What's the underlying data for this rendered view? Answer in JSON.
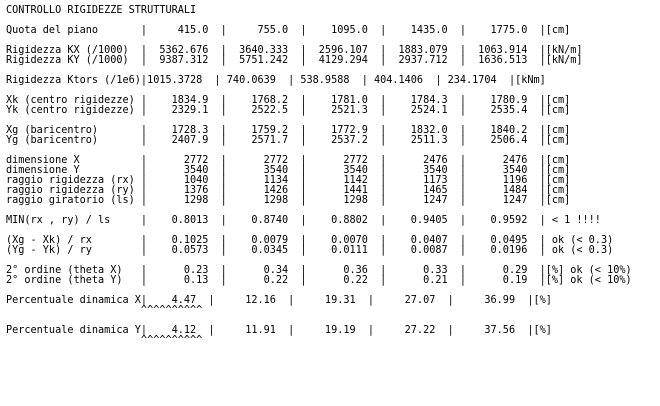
{
  "report": {
    "title": "CONTROLLO RIGIDEZZE STRUTTURALI",
    "lines": [
      "CONTROLLO RIGIDEZZE STRUTTURALI",
      "",
      "Quota del piano       |     415.0  |     755.0  |    1095.0  |    1435.0  |    1775.0  |[cm]",
      "",
      "Rigidezza KX (/1000)  |  5362.676  |  3640.333  |  2596.107  |  1883.079  |  1063.914  |[kN/m]",
      "Rigidezza KY (/1000)  |  9387.312  |  5751.242  |  4129.294  |  2937.712  |  1636.513  |[kN/m]",
      "",
      "Rigidezza Ktors (/1e6)|1015.3728  | 740.0639  | 538.9588  | 404.1406  | 234.1704  |[kNm]",
      "",
      "Xk (centro rigidezze) |    1834.9  |    1768.2  |    1781.0  |    1784.3  |    1780.9  |[cm]",
      "Yk (centro rigidezze) |    2329.1  |    2522.5  |    2521.3  |    2524.1  |    2535.4  |[cm]",
      "",
      "Xg (baricentro)       |    1728.3  |    1759.2  |    1772.9  |    1832.0  |    1840.2  |[cm]",
      "Yg (baricentro)       |    2407.9  |    2571.7  |    2537.2  |    2511.3  |    2506.4  |[cm]",
      "",
      "dimensione X          |      2772  |      2772  |      2772  |      2476  |      2476  |[cm]",
      "dimensione Y          |      3540  |      3540  |      3540  |      3540  |      3540  |[cm]",
      "raggio rigidezza (rx) |      1040  |      1134  |      1142  |      1173  |      1196  |[cm]",
      "raggio rigidezza (ry) |      1376  |      1426  |      1441  |      1465  |      1484  |[cm]",
      "raggio giratorio (ls) |      1298  |      1298  |      1298  |      1247  |      1247  |[cm]",
      "",
      "MIN(rx , ry) / ls     |    0.8013  |    0.8740  |    0.8802  |    0.9405  |    0.9592  | < 1 !!!!",
      "",
      "(Xg - Xk) / rx        |    0.1025  |    0.0079  |    0.0070  |    0.0407  |    0.0495  | ok (< 0.3)",
      "(Yg - Yk) / ry        |    0.0573  |    0.0345  |    0.0111  |    0.0087  |    0.0196  | ok (< 0.3)",
      "",
      "2° ordine (theta X)   |      0.23  |      0.34  |      0.36  |      0.33  |      0.29  |[%] ok (< 10%)",
      "2° ordine (theta Y)   |      0.13  |      0.22  |      0.22  |      0.21  |      0.19  |[%] ok (< 10%)",
      "",
      "Percentuale dinamica X|    4.47  |     12.16  |     19.31  |     27.07  |     36.99  |[%]",
      "                      ^^^^^^^^^^",
      "",
      "Percentuale dinamica Y|    4.12  |     11.91  |     19.19  |     27.22  |     37.56  |[%]",
      "                      ^^^^^^^^^^"
    ]
  }
}
